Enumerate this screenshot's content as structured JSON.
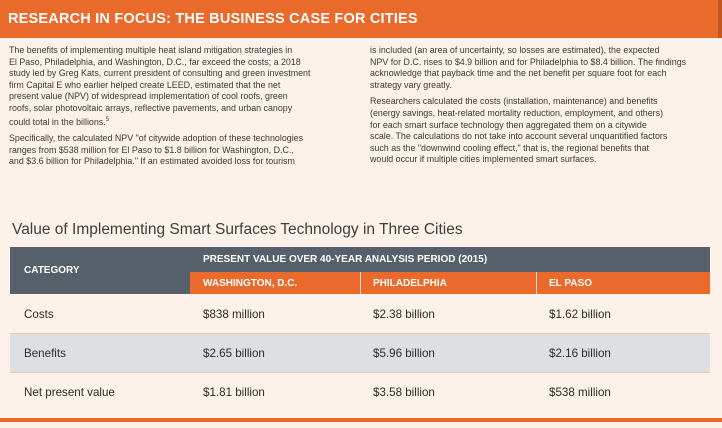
{
  "banner": {
    "title": "RESEARCH IN FOCUS: THE BUSINESS CASE FOR CITIES"
  },
  "article": {
    "left_p1_lines": [
      "The benefits of implementing multiple heat island mitigation strategies in",
      "El Paso, Philadelphia, and Washington, D.C., far exceed the costs; a 2018",
      "study led by Greg Kats, current president of consulting and green investment",
      "firm Capital E who earlier helped create LEED, estimated that the net",
      "present value (NPV) of widespread implementation of cool roofs, green",
      "roofs, solar photovoltaic arrays, reflective pavements, and urban canopy",
      "could total in the billions."
    ],
    "left_p1_footnote": "5",
    "left_p2_lines": [
      "Specifically, the calculated NPV \"of citywide adoption of these technologies",
      "ranges from $538 million for El Paso to $1.8 billion for Washington, D.C.,",
      "and $3.6 billion for Philadelphia.\" If an estimated avoided loss for tourism"
    ],
    "right_p1_lines": [
      "is included (an area of uncertainty, so losses are estimated), the expected",
      "NPV for D.C. rises to $4.9 billion and for Philadelphia to $8.4 billion. The findings",
      "acknowledge that payback time and the net benefit per square foot for each",
      "strategy vary greatly."
    ],
    "right_p2_lines": [
      "Researchers calculated the costs (installation, maintenance) and benefits",
      "(energy savings, heat-related mortality reduction, employment, and others)",
      "for each smart surface technology then aggregated them on a citywide",
      "scale. The calculations do not take into account several unquantified factors",
      "such as the \"downwind cooling effect,\" that is, the regional benefits that",
      "would occur if multiple cities implemented smart surfaces."
    ]
  },
  "table": {
    "title": "Value of Implementing Smart Surfaces Technology in Three Cities",
    "category_header": "CATEGORY",
    "group_header": "PRESENT VALUE OVER 40-YEAR ANALYSIS PERIOD (2015)",
    "cities": [
      "WASHINGTON, D.C.",
      "PHILADELPHIA",
      "EL PASO"
    ],
    "rows": [
      {
        "category": "Costs",
        "values": [
          "$838 million",
          "$2.38 billion",
          "$1.62 billion"
        ]
      },
      {
        "category": "Benefits",
        "values": [
          "$2.65 billion",
          "$5.96 billion",
          "$2.16 billion"
        ]
      },
      {
        "category": "Net present value",
        "values": [
          "$1.81 billion",
          "$3.58 billion",
          "$538 million"
        ]
      }
    ]
  },
  "colors": {
    "accent": "#e96a2b",
    "header_gray": "#55606a",
    "page_bg": "#fdf2e9",
    "alt_row": "#dedfe2"
  }
}
